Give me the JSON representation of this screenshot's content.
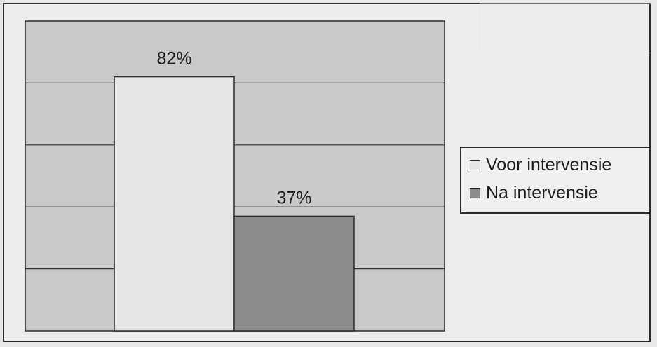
{
  "chart_data": {
    "type": "bar",
    "categories": [
      ""
    ],
    "series": [
      {
        "name": "Voor intervensie",
        "values": [
          82
        ],
        "label": "82%",
        "color": "#e6e6e6"
      },
      {
        "name": "Na intervensie",
        "values": [
          37
        ],
        "label": "37%",
        "color": "#8c8c8c"
      }
    ],
    "ylim": [
      0,
      100
    ],
    "grid": true,
    "legend_position": "right",
    "plot_background": "#c9c9c9"
  }
}
